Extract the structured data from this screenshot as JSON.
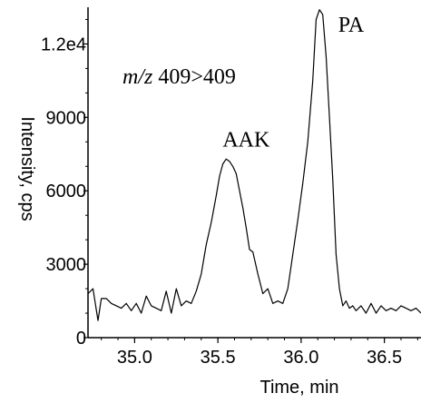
{
  "chart_data": {
    "type": "line",
    "title": "",
    "xlabel": "Time, min",
    "ylabel": "Intensity, cps",
    "xlim": [
      34.72,
      36.72
    ],
    "ylim": [
      0,
      13500
    ],
    "x_ticks": [
      {
        "value": 35.0,
        "label": "35.0"
      },
      {
        "value": 35.5,
        "label": "35.5"
      },
      {
        "value": 36.0,
        "label": "36.0"
      },
      {
        "value": 36.5,
        "label": "36.5"
      }
    ],
    "y_ticks": [
      {
        "value": 0,
        "label": "0"
      },
      {
        "value": 3000,
        "label": "3000"
      },
      {
        "value": 6000,
        "label": "6000"
      },
      {
        "value": 9000,
        "label": "9000"
      },
      {
        "value": 12000,
        "label": "1.2e4"
      }
    ],
    "grid": false,
    "legend": "none",
    "line_color": "#000000",
    "series": [
      {
        "x": [
          34.72,
          34.75,
          34.78,
          34.8,
          34.83,
          34.86,
          34.89,
          34.92,
          34.95,
          34.98,
          35.01,
          35.04,
          35.07,
          35.1,
          35.13,
          35.16,
          35.19,
          35.22,
          35.25,
          35.28,
          35.31,
          35.34,
          35.37,
          35.4,
          35.43,
          35.46,
          35.49,
          35.51,
          35.53,
          35.55,
          35.57,
          35.59,
          35.61,
          35.63,
          35.65,
          35.67,
          35.69,
          35.71,
          35.74,
          35.77,
          35.8,
          35.83,
          35.86,
          35.89,
          35.92,
          35.95,
          35.98,
          36.01,
          36.04,
          36.07,
          36.09,
          36.11,
          36.13,
          36.15,
          36.17,
          36.19,
          36.21,
          36.23,
          36.25,
          36.27,
          36.29,
          36.31,
          36.33,
          36.36,
          36.39,
          36.42,
          36.45,
          36.48,
          36.51,
          36.54,
          36.57,
          36.6,
          36.63,
          36.66,
          36.69,
          36.72
        ],
        "y": [
          1800,
          2000,
          700,
          1600,
          1600,
          1400,
          1300,
          1200,
          1400,
          1100,
          1400,
          1000,
          1700,
          1300,
          1200,
          1100,
          1900,
          1000,
          2000,
          1300,
          1500,
          1400,
          1900,
          2600,
          3800,
          4700,
          5800,
          6600,
          7100,
          7300,
          7200,
          7000,
          6700,
          6000,
          5300,
          4500,
          3600,
          3500,
          2600,
          1800,
          2000,
          1400,
          1500,
          1400,
          2000,
          3400,
          4800,
          6300,
          8000,
          10500,
          13000,
          13400,
          13200,
          11500,
          9000,
          6500,
          3400,
          2000,
          1300,
          1500,
          1200,
          1300,
          1100,
          1300,
          1000,
          1400,
          1000,
          1300,
          1100,
          1200,
          1100,
          1300,
          1200,
          1100,
          1200,
          1000
        ]
      }
    ],
    "annotations": [
      {
        "id": "aak",
        "text": "AAK",
        "x": 35.67,
        "y": 7800
      },
      {
        "id": "pa",
        "text": "PA",
        "x": 36.3,
        "y": 12500
      }
    ],
    "mz_label": {
      "prefix": "m/z",
      "value": " 409>409"
    }
  }
}
